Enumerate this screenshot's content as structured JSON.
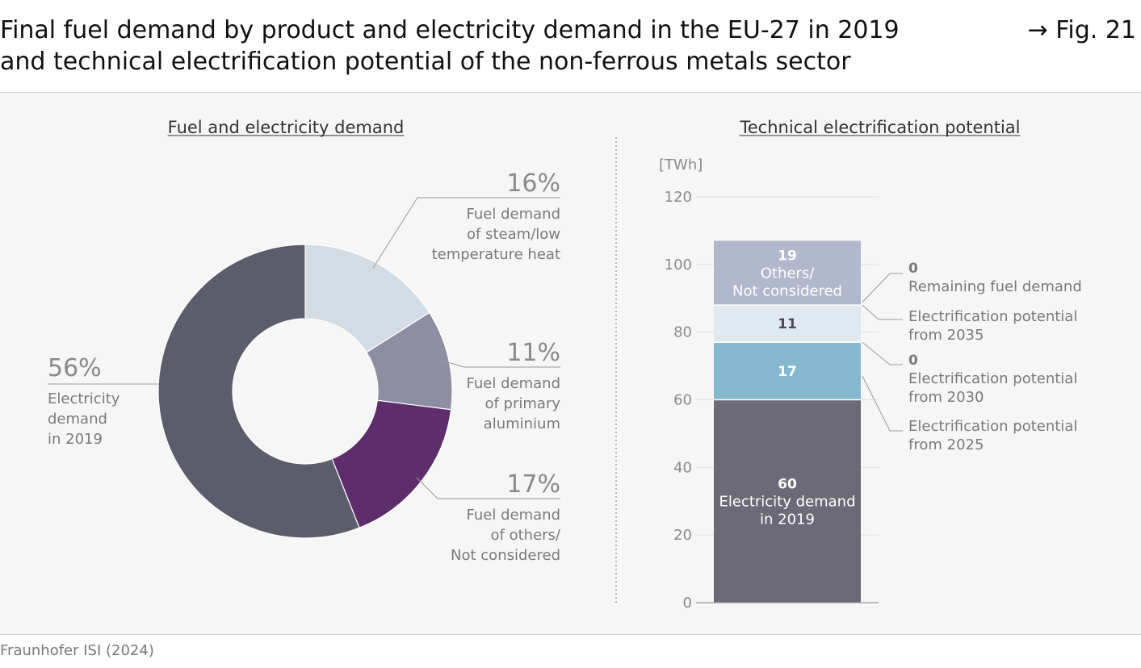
{
  "header": {
    "title_line1": "Final fuel demand by product and electricity demand in the EU-27 in 2019",
    "title_line2": "and technical electrification potential of the non-ferrous metals sector",
    "fig_ref": "→ Fig. 21"
  },
  "footer": {
    "source": "Fraunhofer ISI (2024)"
  },
  "chart_data": [
    {
      "type": "pie",
      "variant": "donut",
      "title": "Fuel and electricity demand",
      "slices": [
        {
          "pct_label": "16%",
          "value": 16,
          "label_lines": [
            "Fuel demand",
            "of steam/low",
            "temperature heat"
          ],
          "color": "#d3dce3"
        },
        {
          "pct_label": "11%",
          "value": 11,
          "label_lines": [
            "Fuel demand",
            "of primary",
            "aluminium"
          ],
          "color": "#8e8ea2"
        },
        {
          "pct_label": "17%",
          "value": 17,
          "label_lines": [
            "Fuel demand",
            "of others/",
            "Not considered"
          ],
          "color": "#5e2d6c"
        },
        {
          "pct_label": "56%",
          "value": 56,
          "label_lines": [
            "Electricity",
            "demand",
            "in 2019"
          ],
          "color": "#5b5d6a"
        }
      ]
    },
    {
      "type": "bar",
      "variant": "stacked",
      "title": "Technical electrification potential",
      "unit": "[TWh]",
      "ylim": [
        0,
        120
      ],
      "yticks": [
        0,
        20,
        40,
        60,
        80,
        100,
        120
      ],
      "segments": [
        {
          "value": 60,
          "value_label": "60",
          "inner_lines": [
            "Electricity demand",
            "in 2019"
          ],
          "color": "#6b6a76",
          "text_color": "#ffffff"
        },
        {
          "value": 17,
          "value_label": "17",
          "inner_lines": [],
          "color": "#86b9cf",
          "text_color": "#ffffff"
        },
        {
          "value": 0,
          "value_label": "",
          "inner_lines": [],
          "color": "#86b9cf",
          "text_color": "#ffffff"
        },
        {
          "value": 11,
          "value_label": "11",
          "inner_lines": [],
          "color": "#dfe9ef",
          "text_color": "#4a4a55"
        },
        {
          "value": 0,
          "value_label": "",
          "inner_lines": [],
          "color": "#dfe9ef",
          "text_color": "#4a4a55"
        },
        {
          "value": 19,
          "value_label": "19",
          "inner_lines": [
            "Others/",
            "Not considered"
          ],
          "color": "#b2b8cc",
          "text_color": "#ffffff"
        }
      ],
      "legend": [
        {
          "value_label": "0",
          "text_lines": [
            "Remaining fuel demand"
          ]
        },
        {
          "value_label": "",
          "text_lines": [
            "Electrification potential",
            "from 2035"
          ]
        },
        {
          "value_label": "0",
          "text_lines": [
            "Electrification potential",
            "from 2030"
          ]
        },
        {
          "value_label": "",
          "text_lines": [
            "Electrification potential",
            "from 2025"
          ]
        }
      ]
    }
  ]
}
